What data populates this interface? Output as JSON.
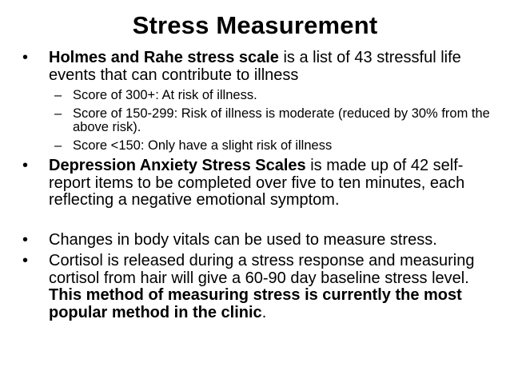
{
  "slide": {
    "title": "Stress Measurement",
    "bullet_glyph": "•",
    "sub_glyph": "–",
    "bullets": [
      {
        "bold": "Holmes and Rahe stress scale",
        "text": " is a list of 43 stressful life events that can contribute to illness",
        "subs": [
          "Score of 300+: At risk of illness.",
          "Score of 150-299: Risk of illness is moderate (reduced by 30% from the above risk).",
          "Score <150: Only have a slight risk of illness"
        ]
      },
      {
        "bold": "Depression Anxiety Stress Scales",
        "text": " is made up of 42 self-report items to be completed over five to ten minutes, each reflecting a negative emotional symptom."
      },
      {
        "text": "Changes in body vitals can be used to measure stress."
      },
      {
        "text": "Cortisol is released during a stress response and measuring cortisol from hair will give a 60-90 day baseline stress level. ",
        "bold_end": "This method of measuring stress is currently the most popular method in the clinic",
        "end": "."
      }
    ]
  }
}
